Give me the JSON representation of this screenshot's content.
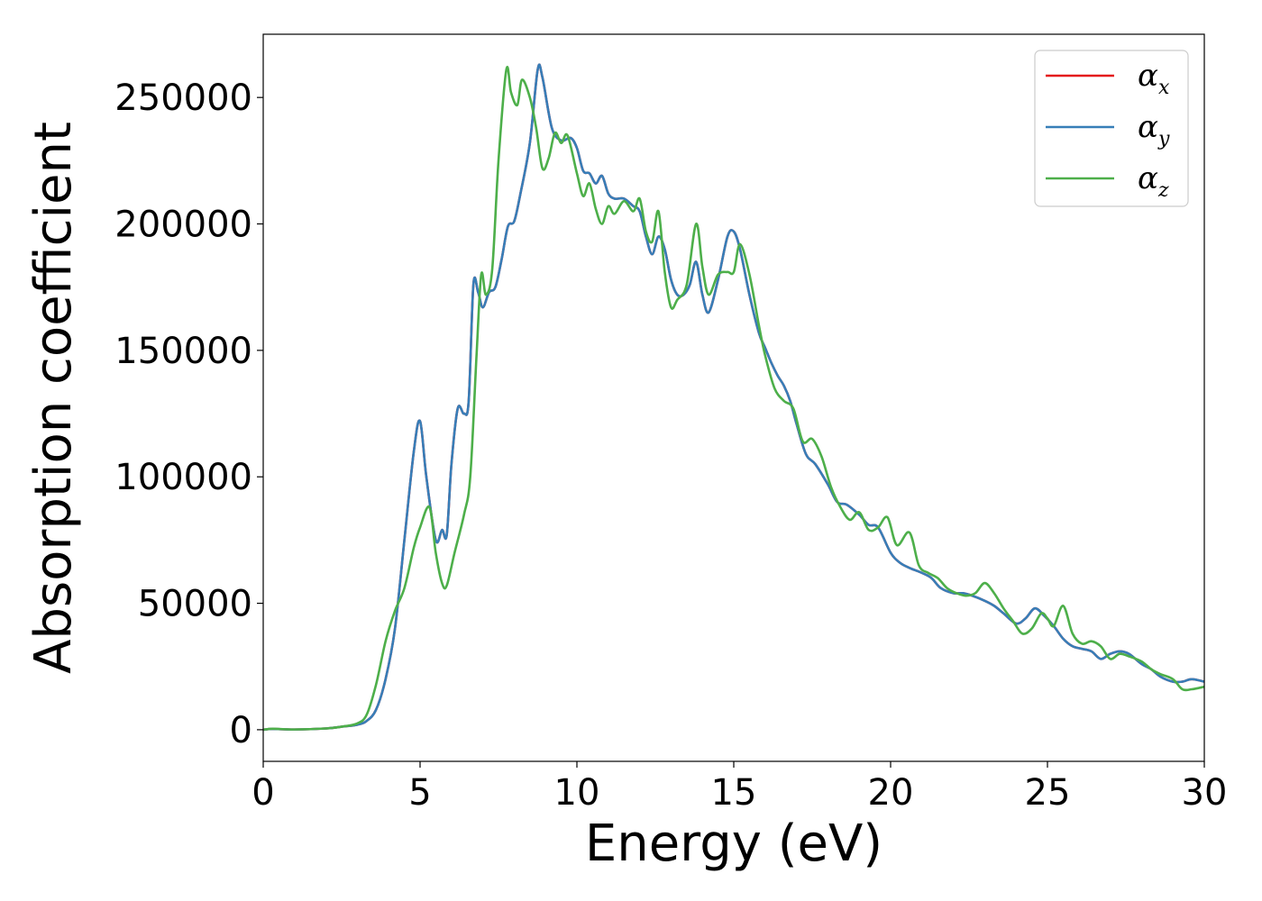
{
  "chart_data": {
    "type": "line",
    "title": "",
    "xlabel": "Energy (eV)",
    "ylabel": "Absorption coefficient",
    "xlim": [
      0,
      30
    ],
    "ylim": [
      -12500,
      275000
    ],
    "xticks": [
      0,
      5,
      10,
      15,
      20,
      25,
      30
    ],
    "yticks": [
      0,
      50000,
      100000,
      150000,
      200000,
      250000
    ],
    "xtick_labels": [
      "0",
      "5",
      "10",
      "15",
      "20",
      "25",
      "30"
    ],
    "ytick_labels": [
      "0",
      "50000",
      "100000",
      "150000",
      "200000",
      "250000"
    ],
    "grid": false,
    "legend_position": "top-right",
    "series": [
      {
        "name": "αx",
        "legend_base": "α",
        "legend_sub": "x",
        "color": "#e41a1c",
        "x": [
          0,
          0.3,
          1,
          2,
          2.5,
          3,
          3.3,
          3.6,
          3.9,
          4.2,
          4.5,
          4.8,
          5.0,
          5.2,
          5.5,
          5.7,
          5.85,
          6.0,
          6.2,
          6.4,
          6.55,
          6.7,
          6.85,
          7.0,
          7.2,
          7.4,
          7.6,
          7.8,
          8.0,
          8.2,
          8.5,
          8.75,
          8.9,
          9.2,
          9.5,
          9.8,
          10.0,
          10.2,
          10.4,
          10.6,
          10.8,
          11.0,
          11.2,
          11.5,
          11.8,
          12.0,
          12.2,
          12.4,
          12.6,
          12.8,
          13.0,
          13.2,
          13.4,
          13.6,
          13.8,
          14.0,
          14.2,
          14.5,
          14.8,
          15.0,
          15.2,
          15.5,
          15.8,
          16.0,
          16.2,
          16.4,
          16.6,
          16.8,
          17.0,
          17.3,
          17.6,
          18.0,
          18.3,
          18.6,
          19.0,
          19.3,
          19.6,
          20.0,
          20.3,
          20.6,
          21.0,
          21.3,
          21.6,
          22.0,
          22.3,
          22.6,
          23.0,
          23.3,
          23.6,
          24.0,
          24.3,
          24.6,
          24.9,
          25.2,
          25.5,
          25.8,
          26.1,
          26.4,
          26.7,
          27.0,
          27.3,
          27.6,
          28.0,
          28.3,
          28.6,
          29.0,
          29.3,
          29.6,
          30.0
        ],
        "y": [
          0,
          300,
          100,
          500,
          1200,
          2000,
          3500,
          8000,
          20000,
          40000,
          75000,
          110000,
          122000,
          100000,
          75000,
          79000,
          77000,
          105000,
          127000,
          125000,
          130000,
          176000,
          173000,
          167000,
          173000,
          175000,
          186000,
          199000,
          201000,
          212000,
          232000,
          261000,
          258000,
          238000,
          233000,
          234000,
          230000,
          221000,
          220000,
          216000,
          219000,
          212000,
          210000,
          210000,
          207000,
          205000,
          195000,
          188000,
          195000,
          190000,
          178000,
          172000,
          172000,
          176000,
          185000,
          172000,
          165000,
          178000,
          195000,
          197000,
          190000,
          172000,
          157000,
          151000,
          145000,
          140000,
          136000,
          130000,
          121000,
          109000,
          105000,
          97000,
          90000,
          89000,
          85000,
          81000,
          80000,
          70000,
          66000,
          64000,
          62000,
          60000,
          56000,
          54000,
          54000,
          53000,
          51000,
          49000,
          46000,
          42000,
          44000,
          48000,
          45000,
          41000,
          36000,
          33000,
          32000,
          31000,
          28000,
          30000,
          31000,
          30000,
          26000,
          24000,
          21000,
          19000,
          19000,
          20000,
          19000
        ]
      },
      {
        "name": "αy",
        "legend_base": "α",
        "legend_sub": "y",
        "color": "#377eb8",
        "x": [
          0,
          0.3,
          1,
          2,
          2.5,
          3,
          3.3,
          3.6,
          3.9,
          4.2,
          4.5,
          4.8,
          5.0,
          5.2,
          5.5,
          5.7,
          5.85,
          6.0,
          6.2,
          6.4,
          6.55,
          6.7,
          6.85,
          7.0,
          7.2,
          7.4,
          7.6,
          7.8,
          8.0,
          8.2,
          8.5,
          8.75,
          8.9,
          9.2,
          9.5,
          9.8,
          10.0,
          10.2,
          10.4,
          10.6,
          10.8,
          11.0,
          11.2,
          11.5,
          11.8,
          12.0,
          12.2,
          12.4,
          12.6,
          12.8,
          13.0,
          13.2,
          13.4,
          13.6,
          13.8,
          14.0,
          14.2,
          14.5,
          14.8,
          15.0,
          15.2,
          15.5,
          15.8,
          16.0,
          16.2,
          16.4,
          16.6,
          16.8,
          17.0,
          17.3,
          17.6,
          18.0,
          18.3,
          18.6,
          19.0,
          19.3,
          19.6,
          20.0,
          20.3,
          20.6,
          21.0,
          21.3,
          21.6,
          22.0,
          22.3,
          22.6,
          23.0,
          23.3,
          23.6,
          24.0,
          24.3,
          24.6,
          24.9,
          25.2,
          25.5,
          25.8,
          26.1,
          26.4,
          26.7,
          27.0,
          27.3,
          27.6,
          28.0,
          28.3,
          28.6,
          29.0,
          29.3,
          29.6,
          30.0
        ],
        "y": [
          0,
          300,
          100,
          500,
          1200,
          2000,
          3500,
          8000,
          20000,
          40000,
          75000,
          110000,
          122000,
          100000,
          75000,
          79000,
          77000,
          105000,
          127000,
          125000,
          130000,
          176000,
          173000,
          167000,
          173000,
          175000,
          186000,
          199000,
          201000,
          212000,
          232000,
          261000,
          258000,
          238000,
          233000,
          234000,
          230000,
          221000,
          220000,
          216000,
          219000,
          212000,
          210000,
          210000,
          207000,
          205000,
          195000,
          188000,
          195000,
          190000,
          178000,
          172000,
          172000,
          176000,
          185000,
          172000,
          165000,
          178000,
          195000,
          197000,
          190000,
          172000,
          157000,
          151000,
          145000,
          140000,
          136000,
          130000,
          121000,
          109000,
          105000,
          97000,
          90000,
          89000,
          85000,
          81000,
          80000,
          70000,
          66000,
          64000,
          62000,
          60000,
          56000,
          54000,
          54000,
          53000,
          51000,
          49000,
          46000,
          42000,
          44000,
          48000,
          45000,
          41000,
          36000,
          33000,
          32000,
          31000,
          28000,
          30000,
          31000,
          30000,
          26000,
          24000,
          21000,
          19000,
          19000,
          20000,
          19000
        ]
      },
      {
        "name": "αz",
        "legend_base": "α",
        "legend_sub": "z",
        "color": "#4daf4a",
        "x": [
          0,
          0.3,
          1,
          2,
          2.5,
          3,
          3.3,
          3.6,
          3.9,
          4.2,
          4.5,
          4.8,
          5.0,
          5.3,
          5.5,
          5.7,
          5.85,
          6.1,
          6.4,
          6.6,
          6.8,
          6.95,
          7.1,
          7.3,
          7.5,
          7.75,
          7.9,
          8.1,
          8.25,
          8.5,
          8.7,
          8.9,
          9.1,
          9.3,
          9.5,
          9.7,
          10.0,
          10.2,
          10.4,
          10.6,
          10.8,
          11.0,
          11.2,
          11.5,
          11.8,
          12.0,
          12.2,
          12.4,
          12.6,
          12.8,
          13.0,
          13.2,
          13.5,
          13.8,
          14.0,
          14.2,
          14.5,
          14.8,
          15.0,
          15.2,
          15.5,
          15.8,
          16.0,
          16.3,
          16.6,
          16.9,
          17.2,
          17.5,
          17.8,
          18.1,
          18.4,
          18.7,
          19.0,
          19.3,
          19.6,
          19.9,
          20.2,
          20.6,
          20.9,
          21.2,
          21.5,
          21.8,
          22.1,
          22.4,
          22.7,
          23.0,
          23.3,
          23.6,
          23.9,
          24.2,
          24.5,
          24.8,
          25.0,
          25.2,
          25.5,
          25.8,
          26.1,
          26.4,
          26.7,
          27.0,
          27.3,
          27.6,
          28.0,
          28.3,
          28.6,
          29.0,
          29.3,
          29.6,
          30.0
        ],
        "y": [
          0,
          400,
          100,
          500,
          1200,
          2500,
          6000,
          18000,
          35000,
          47000,
          56000,
          72000,
          80000,
          88000,
          70000,
          58000,
          57000,
          70000,
          85000,
          100000,
          148000,
          180000,
          172000,
          182000,
          225000,
          261000,
          252000,
          247000,
          257000,
          250000,
          238000,
          222000,
          226000,
          236000,
          232000,
          235000,
          220000,
          211000,
          216000,
          206000,
          200000,
          207000,
          204000,
          209000,
          205000,
          210000,
          197000,
          193000,
          205000,
          181000,
          167000,
          170000,
          176000,
          200000,
          183000,
          172000,
          180000,
          181000,
          181000,
          192000,
          180000,
          160000,
          148000,
          135000,
          130000,
          127000,
          114000,
          115000,
          108000,
          96000,
          88000,
          83000,
          86000,
          79000,
          80000,
          84000,
          73000,
          78000,
          65000,
          62000,
          60000,
          56000,
          54000,
          53000,
          54000,
          58000,
          54000,
          48000,
          43000,
          38000,
          40000,
          46000,
          44000,
          41000,
          49000,
          38000,
          34000,
          35000,
          33000,
          28000,
          30000,
          29000,
          27000,
          24000,
          22000,
          20000,
          16000,
          16000,
          17000
        ]
      }
    ]
  }
}
